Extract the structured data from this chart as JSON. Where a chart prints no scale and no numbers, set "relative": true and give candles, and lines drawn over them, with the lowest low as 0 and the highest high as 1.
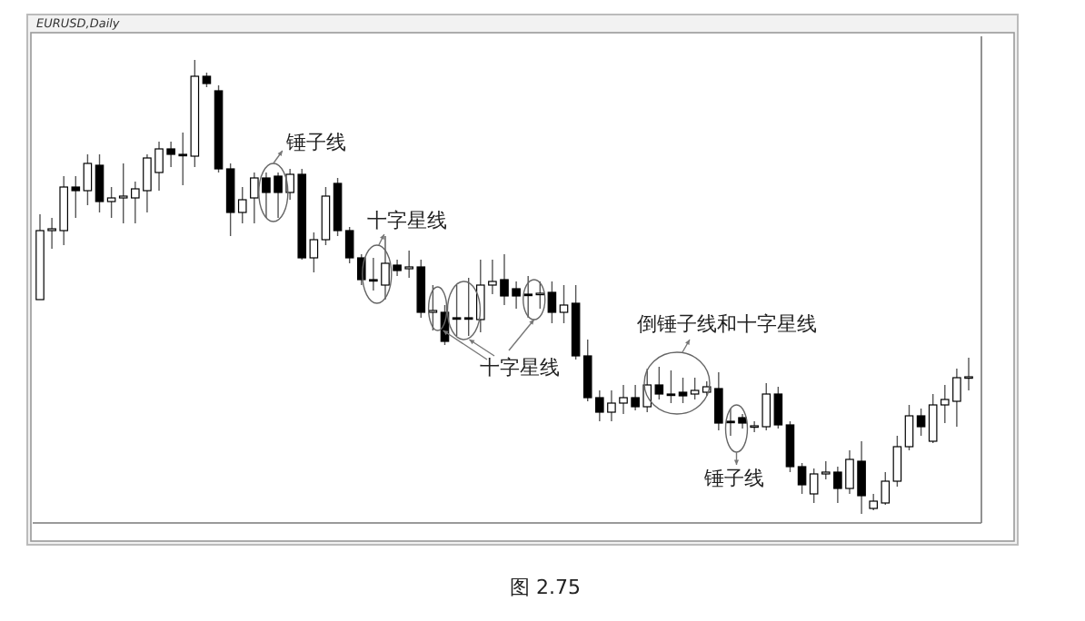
{
  "chart_data": {
    "type": "candlestick",
    "title": "EURUSD,Daily",
    "relative": true,
    "categories": [
      null,
      null,
      null,
      null,
      null,
      null,
      null,
      null,
      null,
      null,
      null,
      null,
      null,
      null,
      null,
      null,
      null,
      null,
      null,
      null,
      null,
      null,
      null,
      null,
      null,
      null,
      null,
      null,
      null,
      null,
      null,
      null,
      null,
      null,
      null,
      null,
      null,
      null,
      null,
      null,
      null,
      null,
      null,
      null,
      null,
      null,
      null,
      null,
      null,
      null,
      null,
      null,
      null,
      null,
      null,
      null,
      null,
      null,
      null,
      null,
      null,
      null,
      null,
      null,
      null,
      null,
      null,
      null,
      null,
      null,
      null,
      null,
      null,
      null,
      null,
      null,
      null,
      null,
      null
    ],
    "ohlc": [
      [
        0.472,
        0.66,
        0.472,
        0.624
      ],
      [
        0.624,
        0.652,
        0.584,
        0.628
      ],
      [
        0.624,
        0.744,
        0.592,
        0.72
      ],
      [
        0.72,
        0.744,
        0.652,
        0.712
      ],
      [
        0.712,
        0.792,
        0.68,
        0.772
      ],
      [
        0.768,
        0.792,
        0.664,
        0.688
      ],
      [
        0.688,
        0.72,
        0.652,
        0.696
      ],
      [
        0.696,
        0.772,
        0.64,
        0.7
      ],
      [
        0.696,
        0.732,
        0.64,
        0.716
      ],
      [
        0.712,
        0.792,
        0.664,
        0.784
      ],
      [
        0.752,
        0.82,
        0.712,
        0.804
      ],
      [
        0.804,
        0.82,
        0.764,
        0.792
      ],
      [
        0.792,
        0.84,
        0.724,
        0.79
      ],
      [
        0.788,
        1.0,
        0.764,
        0.964
      ],
      [
        0.964,
        0.972,
        0.94,
        0.948
      ],
      [
        0.932,
        0.944,
        0.752,
        0.76
      ],
      [
        0.76,
        0.772,
        0.612,
        0.664
      ],
      [
        0.664,
        0.72,
        0.64,
        0.692
      ],
      [
        0.696,
        0.752,
        0.64,
        0.74
      ],
      [
        0.74,
        0.752,
        0.652,
        0.708
      ],
      [
        0.744,
        0.752,
        0.652,
        0.708
      ],
      [
        0.708,
        0.76,
        0.692,
        0.748
      ],
      [
        0.748,
        0.76,
        0.56,
        0.564
      ],
      [
        0.564,
        0.62,
        0.532,
        0.604
      ],
      [
        0.604,
        0.72,
        0.592,
        0.7
      ],
      [
        0.728,
        0.74,
        0.612,
        0.624
      ],
      [
        0.624,
        0.632,
        0.552,
        0.564
      ],
      [
        0.564,
        0.572,
        0.504,
        0.516
      ],
      [
        0.516,
        0.564,
        0.492,
        0.514
      ],
      [
        0.504,
        0.612,
        0.472,
        0.552
      ],
      [
        0.548,
        0.56,
        0.524,
        0.536
      ],
      [
        0.54,
        0.58,
        0.52,
        0.544
      ],
      [
        0.544,
        0.56,
        0.432,
        0.444
      ],
      [
        0.444,
        0.504,
        0.404,
        0.448
      ],
      [
        0.444,
        0.46,
        0.372,
        0.38
      ],
      [
        0.432,
        0.504,
        0.392,
        0.43
      ],
      [
        0.432,
        0.52,
        0.392,
        0.43
      ],
      [
        0.428,
        0.56,
        0.4,
        0.504
      ],
      [
        0.504,
        0.56,
        0.484,
        0.512
      ],
      [
        0.516,
        0.572,
        0.46,
        0.48
      ],
      [
        0.496,
        0.512,
        0.452,
        0.48
      ],
      [
        0.484,
        0.524,
        0.432,
        0.482
      ],
      [
        0.484,
        0.512,
        0.452,
        0.486
      ],
      [
        0.488,
        0.512,
        0.42,
        0.444
      ],
      [
        0.444,
        0.504,
        0.42,
        0.46
      ],
      [
        0.464,
        0.504,
        0.34,
        0.348
      ],
      [
        0.348,
        0.384,
        0.248,
        0.256
      ],
      [
        0.256,
        0.272,
        0.204,
        0.224
      ],
      [
        0.224,
        0.272,
        0.204,
        0.244
      ],
      [
        0.244,
        0.284,
        0.22,
        0.256
      ],
      [
        0.256,
        0.284,
        0.228,
        0.236
      ],
      [
        0.236,
        0.32,
        0.224,
        0.284
      ],
      [
        0.284,
        0.324,
        0.252,
        0.264
      ],
      [
        0.264,
        0.316,
        0.244,
        0.262
      ],
      [
        0.268,
        0.3,
        0.244,
        0.26
      ],
      [
        0.264,
        0.3,
        0.252,
        0.272
      ],
      [
        0.268,
        0.292,
        0.26,
        0.28
      ],
      [
        0.276,
        0.312,
        0.184,
        0.2
      ],
      [
        0.204,
        0.232,
        0.172,
        0.202
      ],
      [
        0.212,
        0.22,
        0.188,
        0.2
      ],
      [
        0.192,
        0.204,
        0.18,
        0.194
      ],
      [
        0.192,
        0.288,
        0.184,
        0.264
      ],
      [
        0.264,
        0.28,
        0.188,
        0.196
      ],
      [
        0.196,
        0.204,
        0.092,
        0.104
      ],
      [
        0.104,
        0.112,
        0.044,
        0.064
      ],
      [
        0.044,
        0.1,
        0.024,
        0.088
      ],
      [
        0.088,
        0.116,
        0.076,
        0.092
      ],
      [
        0.092,
        0.104,
        0.024,
        0.056
      ],
      [
        0.056,
        0.14,
        0.044,
        0.12
      ],
      [
        0.116,
        0.16,
        0.0,
        0.04
      ],
      [
        0.012,
        0.044,
        0.008,
        0.028
      ],
      [
        0.024,
        0.092,
        0.02,
        0.072
      ],
      [
        0.072,
        0.172,
        0.06,
        0.148
      ],
      [
        0.148,
        0.24,
        0.14,
        0.216
      ],
      [
        0.216,
        0.232,
        0.172,
        0.192
      ],
      [
        0.16,
        0.264,
        0.156,
        0.24
      ],
      [
        0.24,
        0.284,
        0.2,
        0.252
      ],
      [
        0.248,
        0.32,
        0.192,
        0.3
      ],
      [
        0.3,
        0.344,
        0.272,
        0.302
      ]
    ],
    "annotations": [
      "锤子线",
      "十字星线",
      "十字星线",
      "倒锤子线和十字星线",
      "锤子线",
      "图 2.75"
    ]
  }
}
